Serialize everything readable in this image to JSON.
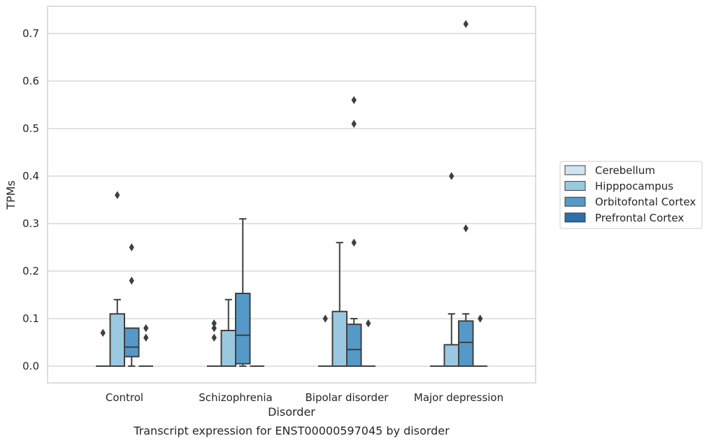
{
  "chart_data": {
    "type": "box",
    "caption": "Transcript expression for ENST00000597045 by disorder",
    "xlabel": "Disorder",
    "ylabel": "TPMs",
    "ylim": [
      -0.035,
      0.755
    ],
    "yticks": [
      0.0,
      0.1,
      0.2,
      0.3,
      0.4,
      0.5,
      0.6,
      0.7
    ],
    "ytick_labels": [
      "0.0",
      "0.1",
      "0.2",
      "0.3",
      "0.4",
      "0.5",
      "0.6",
      "0.7"
    ],
    "grid": "horizontal",
    "legend_position": "right",
    "categories": [
      "Control",
      "Schizophrenia",
      "Bipolar disorder",
      "Major depression"
    ],
    "series": [
      {
        "name": "Cerebellum",
        "color": "#d1e2f2",
        "boxes": [
          {
            "category": "Control",
            "whislo": 0,
            "q1": 0,
            "med": 0,
            "q3": 0,
            "whishi": 0,
            "fliers": [
              0.07
            ]
          },
          {
            "category": "Schizophrenia",
            "whislo": 0,
            "q1": 0,
            "med": 0,
            "q3": 0,
            "whishi": 0,
            "fliers": [
              0.06,
              0.08,
              0.09
            ]
          },
          {
            "category": "Bipolar disorder",
            "whislo": 0,
            "q1": 0,
            "med": 0,
            "q3": 0,
            "whishi": 0,
            "fliers": [
              0.1
            ]
          },
          {
            "category": "Major depression",
            "whislo": 0,
            "q1": 0,
            "med": 0,
            "q3": 0,
            "whishi": 0,
            "fliers": []
          }
        ]
      },
      {
        "name": "Hipppocampus",
        "color": "#9ac8e0",
        "boxes": [
          {
            "category": "Control",
            "whislo": 0,
            "q1": 0,
            "med": 0,
            "q3": 0.11,
            "whishi": 0.14,
            "fliers": [
              0.36
            ]
          },
          {
            "category": "Schizophrenia",
            "whislo": 0,
            "q1": 0,
            "med": 0,
            "q3": 0.075,
            "whishi": 0.14,
            "fliers": []
          },
          {
            "category": "Bipolar disorder",
            "whislo": 0,
            "q1": 0,
            "med": 0,
            "q3": 0.115,
            "whishi": 0.26,
            "fliers": []
          },
          {
            "category": "Major depression",
            "whislo": 0,
            "q1": 0,
            "med": 0,
            "q3": 0.045,
            "whishi": 0.11,
            "fliers": [
              0.4
            ]
          }
        ]
      },
      {
        "name": "Orbitofontal Cortex",
        "color": "#5599c9",
        "boxes": [
          {
            "category": "Control",
            "whislo": 0,
            "q1": 0.02,
            "med": 0.04,
            "q3": 0.08,
            "whishi": 0.08,
            "fliers": [
              0.18,
              0.25
            ]
          },
          {
            "category": "Schizophrenia",
            "whislo": 0,
            "q1": 0.005,
            "med": 0.065,
            "q3": 0.153,
            "whishi": 0.31,
            "fliers": []
          },
          {
            "category": "Bipolar disorder",
            "whislo": 0,
            "q1": 0,
            "med": 0.035,
            "q3": 0.088,
            "whishi": 0.1,
            "fliers": [
              0.26,
              0.51,
              0.56
            ]
          },
          {
            "category": "Major depression",
            "whislo": 0,
            "q1": 0,
            "med": 0.05,
            "q3": 0.095,
            "whishi": 0.11,
            "fliers": [
              0.29,
              0.72
            ]
          }
        ]
      },
      {
        "name": "Prefrontal Cortex",
        "color": "#2b6fac",
        "boxes": [
          {
            "category": "Control",
            "whislo": 0,
            "q1": 0,
            "med": 0,
            "q3": 0,
            "whishi": 0,
            "fliers": [
              0.06,
              0.08
            ]
          },
          {
            "category": "Schizophrenia",
            "whislo": 0,
            "q1": 0,
            "med": 0,
            "q3": 0,
            "whishi": 0,
            "fliers": []
          },
          {
            "category": "Bipolar disorder",
            "whislo": 0,
            "q1": 0,
            "med": 0,
            "q3": 0,
            "whishi": 0,
            "fliers": [
              0.09
            ]
          },
          {
            "category": "Major depression",
            "whislo": 0,
            "q1": 0,
            "med": 0,
            "q3": 0,
            "whishi": 0,
            "fliers": [
              0.1
            ]
          }
        ]
      }
    ]
  }
}
